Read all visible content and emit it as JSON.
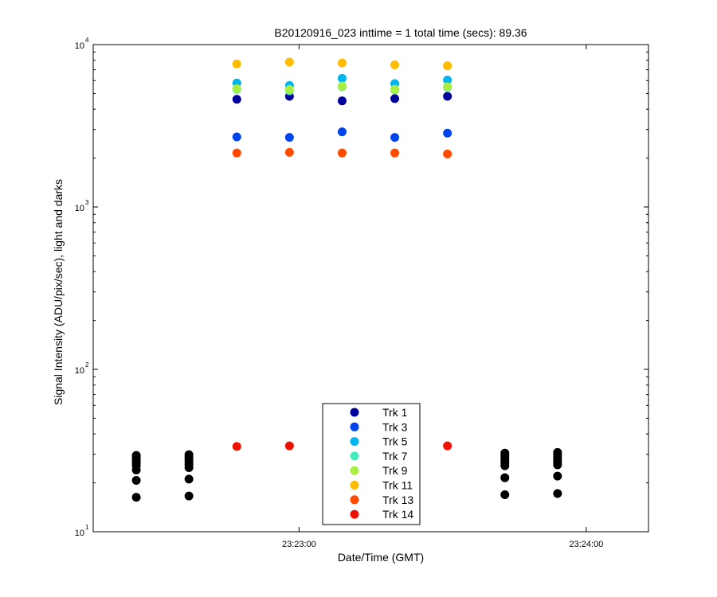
{
  "chart_data": {
    "type": "scatter",
    "title": "B20120916_023 inttime = 1 total time (secs): 89.36",
    "xlabel": "Date/Time (GMT)",
    "ylabel": "Signal Intensity (ADU/pix/sec), light and darks",
    "yscale": "log",
    "ylim": [
      10,
      10000
    ],
    "xlim": [
      "23:22:17",
      "23:24:13"
    ],
    "x_ticks": [
      "23:23:00",
      "23:24:00"
    ],
    "y_ticks": [
      {
        "base": "10",
        "exp": "1"
      },
      {
        "base": "10",
        "exp": "2"
      },
      {
        "base": "10",
        "exp": "3"
      },
      {
        "base": "10",
        "exp": "4"
      }
    ],
    "grid": false,
    "legend_position": "bottom-center",
    "series": [
      {
        "name": "Trk 1",
        "color": "#00009a",
        "points": [
          [
            "23:22:47",
            4600
          ],
          [
            "23:22:58",
            4800
          ],
          [
            "23:23:09",
            4500
          ],
          [
            "23:23:20",
            4650
          ],
          [
            "23:23:31",
            4800
          ]
        ]
      },
      {
        "name": "Trk 3",
        "color": "#0044ee",
        "points": [
          [
            "23:22:47",
            2700
          ],
          [
            "23:22:58",
            2680
          ],
          [
            "23:23:09",
            2900
          ],
          [
            "23:23:20",
            2680
          ],
          [
            "23:23:31",
            2850
          ]
        ]
      },
      {
        "name": "Trk 5",
        "color": "#00b4ee",
        "points": [
          [
            "23:22:47",
            5800
          ],
          [
            "23:22:58",
            5600
          ],
          [
            "23:23:09",
            6200
          ],
          [
            "23:23:20",
            5750
          ],
          [
            "23:23:31",
            6050
          ]
        ]
      },
      {
        "name": "Trk 7",
        "color": "#44eebb",
        "points": [
          [
            "23:22:47",
            5300
          ],
          [
            "23:22:58",
            5200
          ],
          [
            "23:23:09",
            5500
          ],
          [
            "23:23:20",
            5250
          ],
          [
            "23:23:31",
            5450
          ]
        ]
      },
      {
        "name": "Trk 9",
        "color": "#aaee44",
        "points": [
          [
            "23:22:47",
            5350
          ],
          [
            "23:22:58",
            5300
          ],
          [
            "23:23:09",
            5550
          ],
          [
            "23:23:20",
            5300
          ],
          [
            "23:23:31",
            5500
          ]
        ]
      },
      {
        "name": "Trk 11",
        "color": "#ffbb00",
        "points": [
          [
            "23:22:47",
            7600
          ],
          [
            "23:22:58",
            7800
          ],
          [
            "23:23:09",
            7700
          ],
          [
            "23:23:20",
            7500
          ],
          [
            "23:23:31",
            7400
          ]
        ]
      },
      {
        "name": "Trk 13",
        "color": "#ff4a00",
        "points": [
          [
            "23:22:47",
            2150
          ],
          [
            "23:22:58",
            2170
          ],
          [
            "23:23:09",
            2150
          ],
          [
            "23:23:20",
            2150
          ],
          [
            "23:23:31",
            2120
          ]
        ]
      },
      {
        "name": "Trk 14",
        "color": "#ee1100",
        "points": [
          [
            "23:22:47",
            33.5
          ],
          [
            "23:22:58",
            33.8
          ],
          [
            "23:23:09",
            33.8
          ],
          [
            "23:23:20",
            33.8
          ],
          [
            "23:23:31",
            33.8
          ]
        ]
      }
    ],
    "darks": {
      "color": "#000000",
      "points": [
        [
          "23:22:26",
          29.5
        ],
        [
          "23:22:26",
          28.5
        ],
        [
          "23:22:26",
          27.5
        ],
        [
          "23:22:26",
          26.5
        ],
        [
          "23:22:26",
          25.5
        ],
        [
          "23:22:26",
          24.0
        ],
        [
          "23:22:26",
          20.7
        ],
        [
          "23:22:26",
          16.3
        ],
        [
          "23:22:37",
          29.8
        ],
        [
          "23:22:37",
          28.8
        ],
        [
          "23:22:37",
          28.0
        ],
        [
          "23:22:37",
          27.0
        ],
        [
          "23:22:37",
          26.0
        ],
        [
          "23:22:37",
          24.8
        ],
        [
          "23:22:37",
          21.1
        ],
        [
          "23:22:37",
          16.6
        ],
        [
          "23:23:43",
          30.5
        ],
        [
          "23:23:43",
          29.5
        ],
        [
          "23:23:43",
          28.5
        ],
        [
          "23:23:43",
          27.5
        ],
        [
          "23:23:43",
          26.5
        ],
        [
          "23:23:43",
          25.5
        ],
        [
          "23:23:43",
          21.5
        ],
        [
          "23:23:43",
          16.9
        ],
        [
          "23:23:54",
          30.8
        ],
        [
          "23:23:54",
          29.8
        ],
        [
          "23:23:54",
          28.8
        ],
        [
          "23:23:54",
          27.8
        ],
        [
          "23:23:54",
          26.8
        ],
        [
          "23:23:54",
          25.8
        ],
        [
          "23:23:54",
          22.0
        ],
        [
          "23:23:54",
          17.2
        ]
      ]
    }
  }
}
